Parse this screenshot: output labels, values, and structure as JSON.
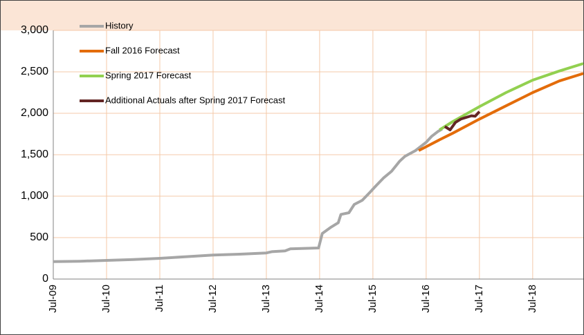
{
  "chart_data": {
    "type": "line",
    "xlim": [
      2009.5,
      2019.45
    ],
    "xticks": [
      {
        "value": 2009.5,
        "label": "Jul-09"
      },
      {
        "value": 2010.5,
        "label": "Jul-10"
      },
      {
        "value": 2011.5,
        "label": "Jul-11"
      },
      {
        "value": 2012.5,
        "label": "Jul-12"
      },
      {
        "value": 2013.5,
        "label": "Jul-13"
      },
      {
        "value": 2014.5,
        "label": "Jul-14"
      },
      {
        "value": 2015.5,
        "label": "Jul-15"
      },
      {
        "value": 2016.5,
        "label": "Jul-16"
      },
      {
        "value": 2017.5,
        "label": "Jul-17"
      },
      {
        "value": 2018.5,
        "label": "Jul-18"
      }
    ],
    "ylim": [
      0,
      3000
    ],
    "yticks": [
      0,
      500,
      {
        "value": 1000,
        "label": "1,000"
      },
      {
        "value": 1500,
        "label": "1,500"
      },
      {
        "value": 2000,
        "label": "2,000"
      },
      {
        "value": 2500,
        "label": "2,500"
      },
      {
        "value": 3000,
        "label": "3,000"
      }
    ],
    "grid": true,
    "legend": "upper left",
    "series": [
      {
        "name": "History",
        "color": "#a6a6a6",
        "x": [
          2009.5,
          2010,
          2010.5,
          2011,
          2011.5,
          2012,
          2012.5,
          2013,
          2013.5,
          2013.6,
          2013.85,
          2013.95,
          2014.48,
          2014.55,
          2014.7,
          2014.85,
          2014.9,
          2015.05,
          2015.15,
          2015.3,
          2015.45,
          2015.55,
          2015.7,
          2015.85,
          2016.0,
          2016.1,
          2016.3,
          2016.5,
          2016.6,
          2016.72,
          2016.8
        ],
        "values": [
          210,
          215,
          225,
          235,
          250,
          270,
          290,
          300,
          315,
          330,
          340,
          365,
          375,
          550,
          620,
          680,
          780,
          800,
          900,
          950,
          1050,
          1120,
          1220,
          1300,
          1420,
          1480,
          1550,
          1650,
          1720,
          1780,
          1810
        ]
      },
      {
        "name": "Fall 2016 Forecast",
        "color": "#e36c0a",
        "x": [
          2016.36,
          2016.75,
          2017,
          2017.5,
          2018,
          2018.5,
          2019,
          2019.45
        ],
        "values": [
          1550,
          1680,
          1760,
          1930,
          2090,
          2250,
          2390,
          2480
        ]
      },
      {
        "name": "Spring 2017 Forecast",
        "color": "#92d050",
        "x": [
          2016.75,
          2017,
          2017.5,
          2018,
          2018.5,
          2019,
          2019.45
        ],
        "values": [
          1800,
          1900,
          2080,
          2250,
          2400,
          2510,
          2600
        ]
      },
      {
        "name": "Additional Actuals after Spring 2017 Forecast",
        "color": "#632523",
        "x": [
          2016.85,
          2016.95,
          2017.05,
          2017.15,
          2017.25,
          2017.35,
          2017.42,
          2017.5
        ],
        "values": [
          1840,
          1800,
          1890,
          1930,
          1950,
          1970,
          1965,
          2020
        ]
      }
    ]
  }
}
